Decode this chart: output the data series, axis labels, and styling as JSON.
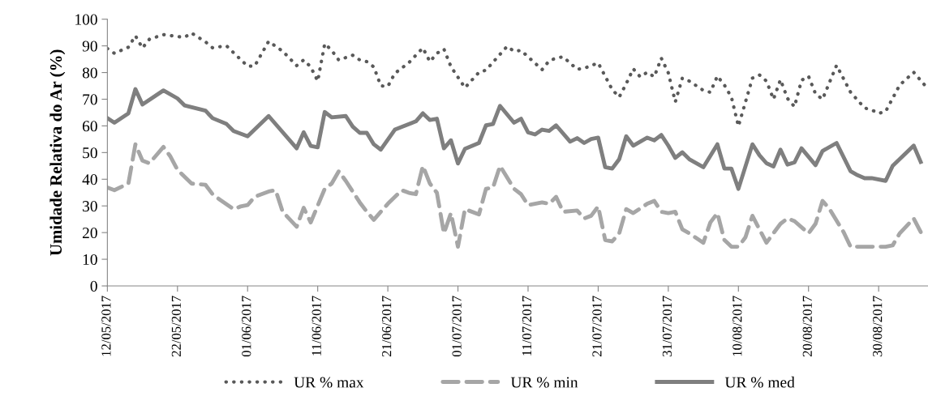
{
  "chart_data": {
    "type": "line",
    "ylabel": "Umidade Relativa do Ar (%)",
    "xlim": [
      "2017-05-12",
      "2017-09-06"
    ],
    "xticks": [
      {
        "value": "2017-05-12",
        "label": "12/05/2017"
      },
      {
        "value": "2017-05-22",
        "label": "22/05/2017"
      },
      {
        "value": "2017-06-01",
        "label": "01/06/2017"
      },
      {
        "value": "2017-06-11",
        "label": "11/06/2017"
      },
      {
        "value": "2017-06-21",
        "label": "21/06/2017"
      },
      {
        "value": "2017-07-01",
        "label": "01/07/2017"
      },
      {
        "value": "2017-07-11",
        "label": "11/07/2017"
      },
      {
        "value": "2017-07-21",
        "label": "21/07/2017"
      },
      {
        "value": "2017-07-31",
        "label": "31/07/2017"
      },
      {
        "value": "2017-08-10",
        "label": "10/08/2017"
      },
      {
        "value": "2017-08-20",
        "label": "20/08/2017"
      },
      {
        "value": "2017-08-30",
        "label": "30/08/2017"
      }
    ],
    "ylim": [
      0,
      100
    ],
    "yticks": [
      0,
      10,
      20,
      30,
      40,
      50,
      60,
      70,
      80,
      90,
      100
    ],
    "grid": false,
    "legend": "bottom",
    "marker": "none",
    "series": [
      {
        "name": "UR % max",
        "color": "#595959",
        "line_style": "dotted",
        "x": [
          "2017-05-12",
          "2017-05-13",
          "2017-05-15",
          "2017-05-16",
          "2017-05-17",
          "2017-05-18",
          "2017-05-20",
          "2017-05-22",
          "2017-05-23",
          "2017-05-24",
          "2017-05-26",
          "2017-05-27",
          "2017-05-29",
          "2017-05-31",
          "2017-06-01",
          "2017-06-02",
          "2017-06-04",
          "2017-06-06",
          "2017-06-08",
          "2017-06-09",
          "2017-06-10",
          "2017-06-11",
          "2017-06-12",
          "2017-06-13",
          "2017-06-14",
          "2017-06-16",
          "2017-06-17",
          "2017-06-18",
          "2017-06-19",
          "2017-06-20",
          "2017-06-21",
          "2017-06-22",
          "2017-06-24",
          "2017-06-25",
          "2017-06-26",
          "2017-06-27",
          "2017-06-28",
          "2017-06-29",
          "2017-06-30",
          "2017-07-02",
          "2017-07-04",
          "2017-07-05",
          "2017-07-08",
          "2017-07-09",
          "2017-07-10",
          "2017-07-13",
          "2017-07-14",
          "2017-07-15",
          "2017-07-16",
          "2017-07-18",
          "2017-07-19",
          "2017-07-21",
          "2017-07-23",
          "2017-07-24",
          "2017-07-25",
          "2017-07-26",
          "2017-07-27",
          "2017-07-28",
          "2017-07-29",
          "2017-07-30",
          "2017-07-31",
          "2017-08-01",
          "2017-08-02",
          "2017-08-03",
          "2017-08-05",
          "2017-08-06",
          "2017-08-07",
          "2017-08-08",
          "2017-08-09",
          "2017-08-10",
          "2017-08-12",
          "2017-08-13",
          "2017-08-14",
          "2017-08-15",
          "2017-08-16",
          "2017-08-17",
          "2017-08-18",
          "2017-08-19",
          "2017-08-20",
          "2017-08-21",
          "2017-08-22",
          "2017-08-24",
          "2017-08-26",
          "2017-08-28",
          "2017-08-29",
          "2017-08-30",
          "2017-08-31",
          "2017-09-02",
          "2017-09-04",
          "2017-09-06"
        ],
        "values": [
          89.0,
          87.2,
          89.5,
          93.8,
          89.2,
          92.5,
          94.2,
          93.5,
          93.2,
          94.8,
          91.5,
          89.3,
          90.0,
          84.9,
          82.4,
          82.4,
          91.7,
          88.0,
          82.6,
          84.7,
          82.1,
          76.8,
          90.8,
          88.3,
          84.7,
          86.5,
          84.7,
          84.1,
          82.1,
          75.0,
          74.8,
          79.7,
          83.7,
          86.5,
          89.2,
          84.1,
          87.2,
          88.8,
          82.2,
          74.3,
          80.1,
          80.9,
          89.8,
          88.0,
          88.3,
          81.1,
          84.4,
          85.4,
          85.9,
          81.2,
          81.6,
          83.6,
          73.6,
          70.8,
          75.8,
          81.4,
          78.4,
          80.1,
          78.4,
          85.4,
          79.9,
          69.0,
          77.9,
          76.8,
          73.3,
          72.6,
          78.7,
          75.3,
          70.8,
          59.9,
          77.9,
          79.1,
          76.8,
          70.0,
          77.3,
          70.3,
          67.2,
          77.1,
          78.6,
          72.0,
          70.0,
          82.7,
          72.6,
          66.7,
          66.0,
          64.7,
          65.4,
          75.3,
          80.1,
          74.0
        ]
      },
      {
        "name": "UR % min",
        "color": "#a6a6a6",
        "line_style": "dashed",
        "x": [
          "2017-05-12",
          "2017-05-13",
          "2017-05-15",
          "2017-05-16",
          "2017-05-17",
          "2017-05-18",
          "2017-05-20",
          "2017-05-21",
          "2017-05-22",
          "2017-05-24",
          "2017-05-26",
          "2017-05-27",
          "2017-05-28",
          "2017-05-30",
          "2017-05-31",
          "2017-06-01",
          "2017-06-02",
          "2017-06-04",
          "2017-06-05",
          "2017-06-06",
          "2017-06-08",
          "2017-06-09",
          "2017-06-10",
          "2017-06-12",
          "2017-06-13",
          "2017-06-14",
          "2017-06-15",
          "2017-06-17",
          "2017-06-18",
          "2017-06-19",
          "2017-06-20",
          "2017-06-21",
          "2017-06-23",
          "2017-06-24",
          "2017-06-25",
          "2017-06-26",
          "2017-06-27",
          "2017-06-28",
          "2017-06-29",
          "2017-06-30",
          "2017-07-01",
          "2017-07-02",
          "2017-07-04",
          "2017-07-05",
          "2017-07-06",
          "2017-07-07",
          "2017-07-09",
          "2017-07-10",
          "2017-07-11",
          "2017-07-13",
          "2017-07-14",
          "2017-07-15",
          "2017-07-16",
          "2017-07-18",
          "2017-07-19",
          "2017-07-20",
          "2017-07-21",
          "2017-07-22",
          "2017-07-23",
          "2017-07-24",
          "2017-07-25",
          "2017-07-26",
          "2017-07-28",
          "2017-07-29",
          "2017-07-30",
          "2017-07-31",
          "2017-08-01",
          "2017-08-02",
          "2017-08-03",
          "2017-08-05",
          "2017-08-06",
          "2017-08-07",
          "2017-08-08",
          "2017-08-09",
          "2017-08-10",
          "2017-08-11",
          "2017-08-12",
          "2017-08-13",
          "2017-08-14",
          "2017-08-16",
          "2017-08-17",
          "2017-08-18",
          "2017-08-20",
          "2017-08-21",
          "2017-08-22",
          "2017-08-23",
          "2017-08-25",
          "2017-08-26",
          "2017-08-28",
          "2017-08-31",
          "2017-09-01",
          "2017-09-02",
          "2017-09-04",
          "2017-09-05"
        ],
        "values": [
          36.9,
          35.9,
          38.4,
          53.1,
          47.0,
          46.0,
          52.1,
          48.5,
          43.5,
          38.4,
          37.9,
          34.4,
          32.4,
          28.8,
          29.8,
          30.3,
          33.4,
          35.4,
          35.9,
          27.8,
          22.2,
          29.3,
          23.8,
          36.4,
          38.4,
          43.0,
          39.4,
          31.3,
          27.8,
          24.8,
          27.8,
          30.8,
          35.9,
          34.9,
          34.4,
          45.0,
          38.4,
          34.9,
          19.7,
          27.3,
          14.7,
          28.8,
          26.8,
          36.4,
          36.9,
          45.0,
          36.4,
          34.4,
          30.3,
          31.3,
          30.8,
          33.4,
          27.8,
          28.3,
          25.3,
          26.3,
          29.8,
          17.2,
          16.7,
          19.7,
          28.8,
          27.3,
          30.8,
          31.9,
          27.8,
          27.3,
          27.8,
          21.2,
          19.7,
          16.2,
          23.8,
          27.3,
          17.2,
          14.7,
          14.7,
          18.2,
          26.3,
          21.2,
          16.2,
          23.3,
          25.3,
          24.3,
          19.7,
          23.3,
          31.9,
          28.8,
          20.2,
          14.7,
          14.7,
          14.7,
          15.2,
          19.7,
          25.3,
          20.2
        ]
      },
      {
        "name": "UR % med",
        "color": "#7f7f7f",
        "line_style": "solid",
        "x": [
          "2017-05-12",
          "2017-05-13",
          "2017-05-15",
          "2017-05-16",
          "2017-05-17",
          "2017-05-20",
          "2017-05-22",
          "2017-05-23",
          "2017-05-26",
          "2017-05-27",
          "2017-05-29",
          "2017-05-30",
          "2017-05-31",
          "2017-06-01",
          "2017-06-04",
          "2017-06-08",
          "2017-06-09",
          "2017-06-10",
          "2017-06-11",
          "2017-06-12",
          "2017-06-13",
          "2017-06-15",
          "2017-06-16",
          "2017-06-17",
          "2017-06-18",
          "2017-06-19",
          "2017-06-20",
          "2017-06-22",
          "2017-06-25",
          "2017-06-26",
          "2017-06-27",
          "2017-06-28",
          "2017-06-29",
          "2017-06-30",
          "2017-07-01",
          "2017-07-02",
          "2017-07-04",
          "2017-07-05",
          "2017-07-06",
          "2017-07-07",
          "2017-07-09",
          "2017-07-10",
          "2017-07-11",
          "2017-07-12",
          "2017-07-13",
          "2017-07-14",
          "2017-07-15",
          "2017-07-17",
          "2017-07-18",
          "2017-07-19",
          "2017-07-20",
          "2017-07-21",
          "2017-07-22",
          "2017-07-23",
          "2017-07-24",
          "2017-07-25",
          "2017-07-26",
          "2017-07-28",
          "2017-07-29",
          "2017-07-30",
          "2017-07-31",
          "2017-08-01",
          "2017-08-02",
          "2017-08-03",
          "2017-08-05",
          "2017-08-07",
          "2017-08-08",
          "2017-08-09",
          "2017-08-10",
          "2017-08-12",
          "2017-08-13",
          "2017-08-14",
          "2017-08-15",
          "2017-08-16",
          "2017-08-17",
          "2017-08-18",
          "2017-08-19",
          "2017-08-21",
          "2017-08-22",
          "2017-08-24",
          "2017-08-26",
          "2017-08-27",
          "2017-08-28",
          "2017-08-29",
          "2017-08-31",
          "2017-09-01",
          "2017-09-04",
          "2017-09-05"
        ],
        "values": [
          62.9,
          61.2,
          64.7,
          73.8,
          68.0,
          73.3,
          70.3,
          67.7,
          65.7,
          62.9,
          60.7,
          58.1,
          57.1,
          56.1,
          63.7,
          51.6,
          57.6,
          52.5,
          52.0,
          65.2,
          63.2,
          63.7,
          59.7,
          57.4,
          57.4,
          53.1,
          51.1,
          58.6,
          61.7,
          64.7,
          62.2,
          62.7,
          51.6,
          54.6,
          45.9,
          51.4,
          53.6,
          60.2,
          60.7,
          67.5,
          61.2,
          62.7,
          57.6,
          56.8,
          58.6,
          58.1,
          60.2,
          54.1,
          55.4,
          53.6,
          55.1,
          55.6,
          44.5,
          44.0,
          47.5,
          56.1,
          52.6,
          55.6,
          54.6,
          56.6,
          52.6,
          48.0,
          50.1,
          47.5,
          44.5,
          53.1,
          44.0,
          44.0,
          36.4,
          53.1,
          49.0,
          46.0,
          44.8,
          51.1,
          45.5,
          46.3,
          51.6,
          45.3,
          50.6,
          53.6,
          43.0,
          41.5,
          40.4,
          40.4,
          39.4,
          45.0,
          52.6,
          46.5
        ]
      }
    ]
  }
}
